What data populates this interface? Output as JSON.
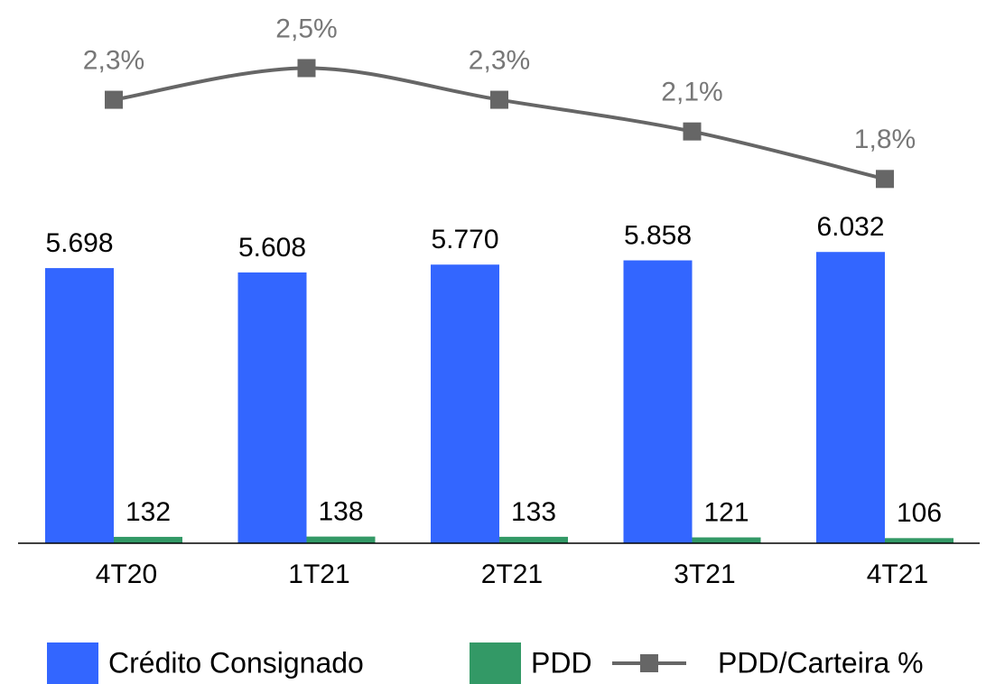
{
  "chart_data": {
    "type": "bar",
    "categories": [
      "4T20",
      "1T21",
      "2T21",
      "3T21",
      "4T21"
    ],
    "series": [
      {
        "name": "Crédito Consignado",
        "color": "#3366ff",
        "values": [
          5698,
          5608,
          5770,
          5858,
          6032
        ],
        "value_labels": [
          "5.698",
          "5.608",
          "5.770",
          "5.858",
          "6.032"
        ]
      },
      {
        "name": "PDD",
        "color": "#339966",
        "values": [
          132,
          138,
          133,
          121,
          106
        ]
      },
      {
        "name": "PDD/Carteira %",
        "color": "#666666",
        "type": "line",
        "axis": "y2",
        "values": [
          2.3,
          2.5,
          2.3,
          2.1,
          1.8
        ],
        "value_labels": [
          "2,3%",
          "2,5%",
          "2,3%",
          "2,1%",
          "1,8%"
        ]
      }
    ],
    "ylim": [
      0,
      11250
    ],
    "y2lim": [
      -0.5,
      2.93
    ],
    "legend": "bottom"
  }
}
